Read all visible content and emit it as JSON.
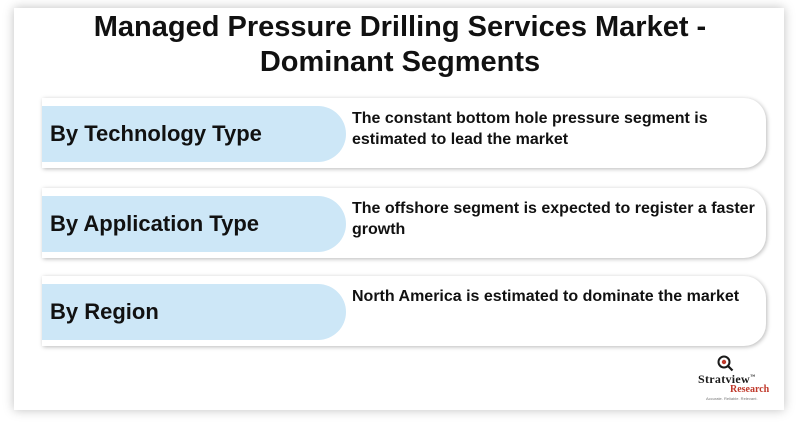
{
  "title": {
    "line1": "Managed Pressure Drilling Services Market -",
    "line2": "Dominant Segments"
  },
  "segments": [
    {
      "label": "By Technology Type",
      "description": "The constant bottom hole pressure segment is estimated to lead the market"
    },
    {
      "label": "By Application Type",
      "description": "The offshore segment  is expected to register a faster growth"
    },
    {
      "label": "By Region",
      "description": "North America is estimated to dominate the market"
    }
  ],
  "logo": {
    "name": "Stratview",
    "trademark": "™",
    "sub": "Research",
    "tagline": "Accurate. Reliable. Relevant."
  },
  "colors": {
    "label_bg": "#cde7f7",
    "logo_accent": "#c0392b"
  }
}
